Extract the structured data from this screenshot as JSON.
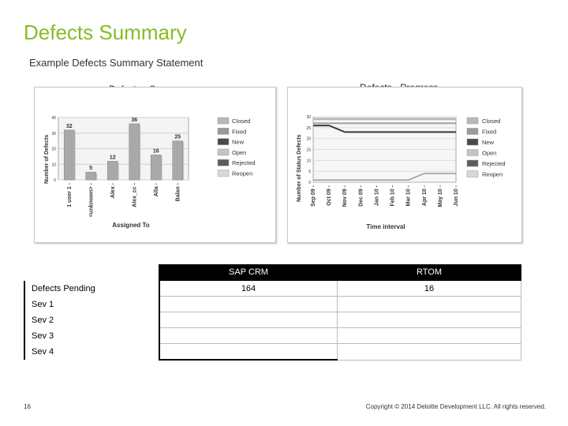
{
  "slide": {
    "title": "Defects Summary",
    "subtitle": "Example Defects Summary Statement",
    "page_number": "16",
    "copyright": "Copyright © 2014 Deloitte Development LLC. All rights reserved."
  },
  "left_chart": {
    "caption": "Defects - Summary",
    "ylabel": "Number of Defects",
    "xlabel": "Assigned To",
    "legend": [
      "Closed",
      "Fixed",
      "New",
      "Open",
      "Rejected",
      "Reopen"
    ],
    "legend_colors": [
      "#b8b8b8",
      "#9a9a9a",
      "#4a4a4a",
      "#c4c4c4",
      "#5c5c5c",
      "#d8d8d8"
    ]
  },
  "right_chart": {
    "caption": "Defects - Progress",
    "ylabel": "Number of Status Defects",
    "xlabel": "Time interval",
    "legend": [
      "Closed",
      "Fixed",
      "New",
      "Open",
      "Rejected",
      "Reopen"
    ],
    "legend_colors": [
      "#b8b8b8",
      "#9a9a9a",
      "#4a4a4a",
      "#c4c4c4",
      "#5c5c5c",
      "#d8d8d8"
    ]
  },
  "chart_data": [
    {
      "type": "bar",
      "title": "Defects - Summary",
      "xlabel": "Assigned To",
      "ylabel": "Number of Defects",
      "categories": [
        "1 user 1 -",
        "<unknown> -",
        "Alex -",
        "Alex_cc -",
        "Alla -",
        "Balan -"
      ],
      "values": [
        32,
        5,
        12,
        36,
        16,
        25
      ],
      "ylim": [
        0,
        40
      ],
      "yticks": [
        0,
        10,
        20,
        30,
        40
      ]
    },
    {
      "type": "line",
      "title": "Defects - Progress",
      "xlabel": "Time interval",
      "ylabel": "Number of Status Defects",
      "x": [
        "Sep 09 -",
        "Oct 09 -",
        "Nov 09 -",
        "Dec 09 -",
        "Jan 10 -",
        "Feb 10 -",
        "Mar 10 -",
        "Apr 10 -",
        "May 10 -",
        "Jun 10 -"
      ],
      "ylim": [
        0,
        30
      ],
      "yticks": [
        0,
        5,
        10,
        15,
        20,
        25,
        30
      ],
      "series": [
        {
          "name": "Closed",
          "values": [
            29,
            29,
            29,
            29,
            29,
            29,
            29,
            29,
            29,
            29
          ]
        },
        {
          "name": "Fixed",
          "values": [
            27,
            27,
            27,
            27,
            27,
            27,
            27,
            27,
            27,
            27
          ]
        },
        {
          "name": "New",
          "values": [
            26,
            26,
            23,
            23,
            23,
            23,
            23,
            23,
            23,
            23
          ]
        },
        {
          "name": "Rejected",
          "values": [
            1,
            1,
            1,
            1,
            1,
            1,
            1,
            4,
            4,
            4
          ]
        },
        {
          "name": "Reopen",
          "values": [
            0,
            0,
            0,
            0,
            0,
            0,
            0,
            0,
            0,
            0
          ]
        }
      ]
    }
  ],
  "table": {
    "headers": [
      "",
      "SAP CRM",
      "RTOM"
    ],
    "rows": [
      {
        "label": "Defects Pending",
        "c1": "164",
        "c2": "16"
      },
      {
        "label": "Sev 1",
        "c1": "",
        "c2": ""
      },
      {
        "label": "Sev 2",
        "c1": "",
        "c2": ""
      },
      {
        "label": "Sev 3",
        "c1": "",
        "c2": ""
      },
      {
        "label": "Sev 4",
        "c1": "",
        "c2": ""
      }
    ]
  }
}
